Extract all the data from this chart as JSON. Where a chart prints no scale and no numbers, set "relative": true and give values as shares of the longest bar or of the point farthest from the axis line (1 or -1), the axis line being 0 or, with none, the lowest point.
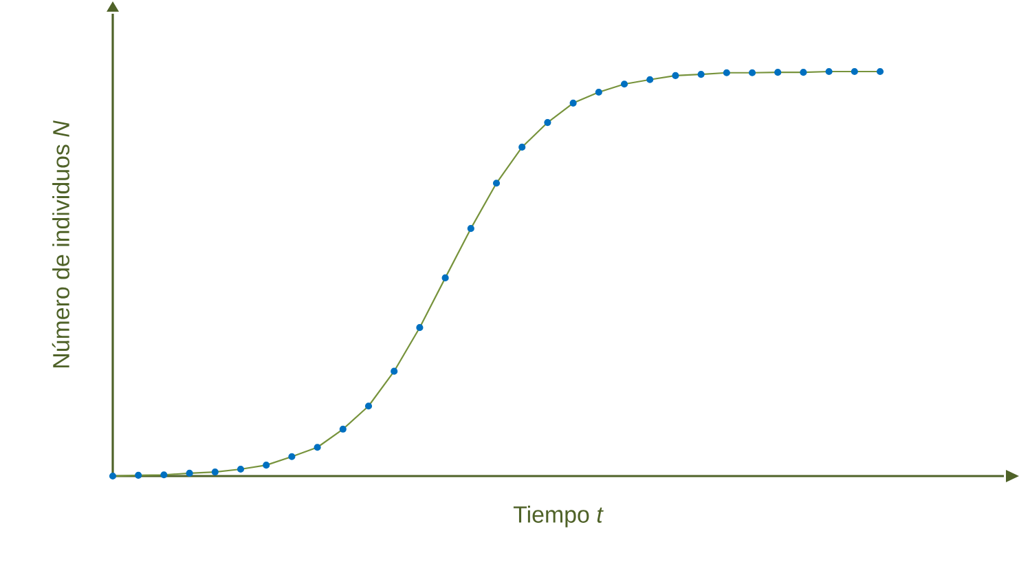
{
  "chart_data": {
    "type": "line",
    "relative": true,
    "xlabel": "Tiempo *t*",
    "ylabel": "Número de individuos *N*",
    "marker": "circle",
    "line_style": "solid",
    "categories": [
      null,
      null,
      null,
      null,
      null,
      null,
      null,
      null,
      null,
      null,
      null,
      null,
      null,
      null,
      null,
      null,
      null,
      null,
      null,
      null,
      null,
      null,
      null,
      null,
      null,
      null,
      null,
      null,
      null,
      null,
      null
    ],
    "series": [
      {
        "color": "#77933c",
        "values": [
          0,
          0.002,
          0.003,
          0.007,
          0.01,
          0.017,
          0.027,
          0.048,
          0.071,
          0.116,
          0.173,
          0.259,
          0.367,
          0.49,
          0.612,
          0.724,
          0.813,
          0.874,
          0.922,
          0.949,
          0.969,
          0.98,
          0.99,
          0.993,
          0.997,
          0.997,
          0.998,
          0.998,
          1,
          1,
          1
        ]
      }
    ]
  }
}
